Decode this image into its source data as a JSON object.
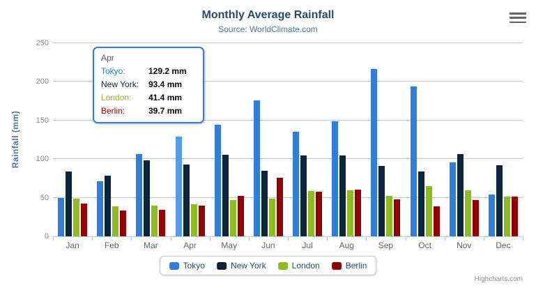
{
  "chart": {
    "title": "Monthly Average Rainfall",
    "subtitle": "Source: WorldClimate.com",
    "y_axis_title": "Rainfall (mm)",
    "credits": "Highcharts.com"
  },
  "chart_data": {
    "type": "bar",
    "title": "Monthly Average Rainfall",
    "subtitle": "Source: WorldClimate.com",
    "categories": [
      "Jan",
      "Feb",
      "Mar",
      "Apr",
      "May",
      "Jun",
      "Jul",
      "Aug",
      "Sep",
      "Oct",
      "Nov",
      "Dec"
    ],
    "series": [
      {
        "name": "Tokyo",
        "color": "#2f7ed8",
        "values": [
          49.9,
          71.5,
          106.4,
          129.2,
          144.0,
          176.0,
          135.6,
          148.5,
          216.4,
          194.1,
          95.6,
          54.4
        ]
      },
      {
        "name": "New York",
        "color": "#0d233a",
        "values": [
          83.6,
          78.8,
          98.5,
          93.4,
          106.0,
          84.5,
          105.0,
          104.3,
          91.2,
          83.5,
          106.6,
          92.3
        ]
      },
      {
        "name": "London",
        "color": "#8bbc21",
        "values": [
          48.9,
          38.8,
          39.3,
          41.4,
          47.0,
          48.3,
          59.0,
          59.6,
          52.4,
          65.2,
          59.3,
          51.2
        ]
      },
      {
        "name": "Berlin",
        "color": "#910000",
        "values": [
          42.4,
          33.2,
          34.5,
          39.7,
          52.6,
          75.5,
          57.4,
          60.4,
          47.6,
          39.1,
          46.8,
          51.1
        ]
      }
    ],
    "xlabel": "",
    "ylabel": "Rainfall (mm)",
    "ylim": [
      0,
      250
    ],
    "yticks": [
      0,
      50,
      100,
      150,
      200,
      250
    ],
    "grid": true,
    "legend_position": "bottom",
    "hover_point": {
      "series": "Tokyo",
      "category": "Apr",
      "hover_color": "#549ce8"
    }
  },
  "tooltip": {
    "header": "Apr",
    "border_color": "#2f7ed8",
    "rows": [
      {
        "label": "Tokyo:",
        "value": "129.2 mm",
        "color": "#2f7ed8"
      },
      {
        "label": "New York:",
        "value": "93.4 mm",
        "color": "#0d233a"
      },
      {
        "label": "London:",
        "value": "41.4 mm",
        "color": "#8bbc21"
      },
      {
        "label": "Berlin:",
        "value": "39.7 mm",
        "color": "#910000"
      }
    ]
  },
  "legend": {
    "items": [
      "Tokyo",
      "New York",
      "London",
      "Berlin"
    ]
  }
}
